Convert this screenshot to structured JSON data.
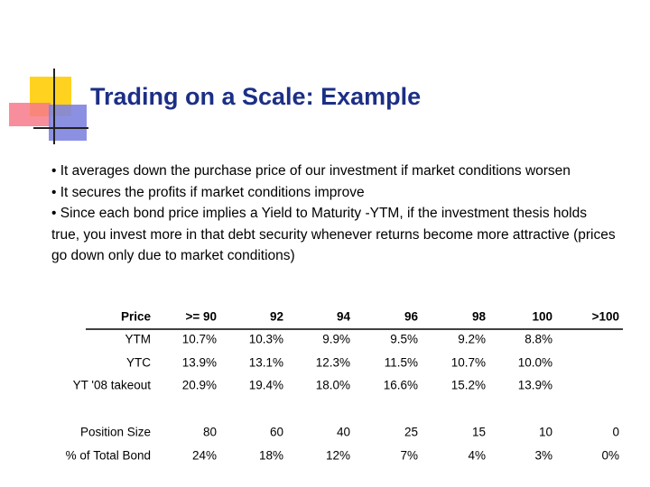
{
  "header": {
    "title": "Trading on a Scale: Example"
  },
  "bullets": [
    "• It averages down the purchase price of our investment if market conditions worsen",
    "• It secures the profits if market conditions improve",
    "• Since each bond price implies a Yield to Maturity -YTM, if the investment thesis holds true, you invest more in that debt security whenever returns become more attractive (prices go down only due to market conditions)"
  ],
  "table": {
    "columns": [
      "Price",
      ">= 90",
      "92",
      "94",
      "96",
      "98",
      "100",
      ">100"
    ],
    "rows": [
      [
        "YTM",
        "10.7%",
        "10.3%",
        "9.9%",
        "9.5%",
        "9.2%",
        "8.8%",
        null
      ],
      [
        "YTC",
        "13.9%",
        "13.1%",
        "12.3%",
        "11.5%",
        "10.7%",
        "10.0%",
        null
      ],
      [
        "YT '08 takeout",
        "20.9%",
        "19.4%",
        "18.0%",
        "16.6%",
        "15.2%",
        "13.9%",
        null
      ],
      [
        "Position Size",
        "80",
        "60",
        "40",
        "25",
        "15",
        "10",
        "0"
      ],
      [
        "% of Total Bond",
        "24%",
        "18%",
        "12%",
        "7%",
        "4%",
        "3%",
        "0%"
      ]
    ]
  }
}
